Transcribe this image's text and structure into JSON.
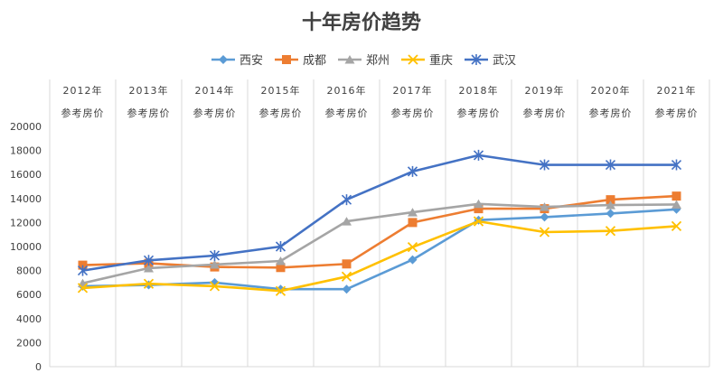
{
  "chart_data": {
    "type": "line",
    "title": "十年房价趋势",
    "categories": [
      [
        "2012年",
        "参考房价"
      ],
      [
        "2013年",
        "参考房价"
      ],
      [
        "2014年",
        "参考房价"
      ],
      [
        "2015年",
        "参考房价"
      ],
      [
        "2016年",
        "参考房价"
      ],
      [
        "2017年",
        "参考房价"
      ],
      [
        "2018年",
        "参考房价"
      ],
      [
        "2019年",
        "参考房价"
      ],
      [
        "2020年",
        "参考房价"
      ],
      [
        "2021年",
        "参考房价"
      ]
    ],
    "ylim": [
      0,
      20000
    ],
    "yticks": [
      0,
      2000,
      4000,
      6000,
      8000,
      10000,
      12000,
      14000,
      16000,
      18000,
      20000
    ],
    "legend_position": "top",
    "series": [
      {
        "name": "西安",
        "color": "#5b9bd5",
        "marker": "diamond",
        "values": [
          6700,
          6800,
          7000,
          6450,
          6450,
          8900,
          12200,
          12450,
          12750,
          13100
        ]
      },
      {
        "name": "成都",
        "color": "#ed7d31",
        "marker": "square",
        "values": [
          8450,
          8600,
          8300,
          8250,
          8550,
          12000,
          13150,
          13150,
          13900,
          14200
        ]
      },
      {
        "name": "郑州",
        "color": "#a5a5a5",
        "marker": "triangle",
        "values": [
          6950,
          8200,
          8500,
          8800,
          12100,
          12850,
          13550,
          13300,
          13450,
          13500
        ]
      },
      {
        "name": "重庆",
        "color": "#ffc000",
        "marker": "x",
        "values": [
          6550,
          6900,
          6700,
          6300,
          7500,
          9950,
          12100,
          11200,
          11300,
          11700
        ]
      },
      {
        "name": "武汉",
        "color": "#4472c4",
        "marker": "star",
        "values": [
          8000,
          8850,
          9250,
          10000,
          13900,
          16250,
          17600,
          16800,
          16800,
          16800
        ]
      }
    ]
  }
}
